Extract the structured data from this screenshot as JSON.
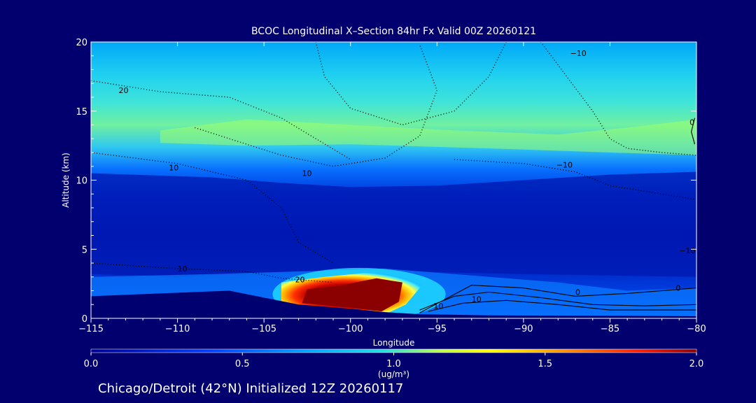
{
  "chart_data": {
    "type": "heatmap",
    "title": "BCOC Longitudinal X–Section 84hr  Fx Valid 00Z 20260121",
    "xlabel": "Longitude",
    "ylabel": "Altitude (km)",
    "xlim": [
      -115,
      -80
    ],
    "ylim": [
      0,
      20
    ],
    "x_ticks": [
      -115,
      -110,
      -105,
      -100,
      -95,
      -90,
      -85,
      -80
    ],
    "x_tick_labels": [
      "−115",
      "−110",
      "−105",
      "−100",
      "−95",
      "−90",
      "−85",
      "−80"
    ],
    "y_ticks": [
      0,
      5,
      10,
      15,
      20
    ],
    "y_tick_labels": [
      "0",
      "5",
      "10",
      "15",
      "20"
    ],
    "colorbar": {
      "min": 0.0,
      "max": 2.0,
      "ticks": [
        0.0,
        0.5,
        1.0,
        1.5,
        2.0
      ],
      "tick_labels": [
        "0.0",
        "0.5",
        "1.0",
        "1.5",
        "2.0"
      ],
      "unit_label": "(ug/m³)",
      "colors": [
        "#000090",
        "#0010d0",
        "#0050ff",
        "#00a0ff",
        "#20d8f0",
        "#a0ff60",
        "#ffff00",
        "#ffa000",
        "#ff3000",
        "#c00000",
        "#8b0000"
      ]
    },
    "bands": [
      {
        "name": "",
        "alt_range": [
          0,
          3
        ],
        "value": 0.15
      },
      {
        "name": "",
        "alt_range": [
          3,
          9
        ],
        "value": 0.2
      },
      {
        "name": "",
        "alt_range": [
          9,
          11
        ],
        "value": 0.35
      },
      {
        "name": "",
        "alt_range": [
          11,
          15
        ],
        "value": 0.75
      },
      {
        "name": "",
        "alt_range": [
          15,
          20
        ],
        "value": 0.6
      }
    ],
    "plume": {
      "lon_range": [
        -103,
        -96
      ],
      "alt_range": [
        0.5,
        3
      ],
      "peak_value": 2.0
    },
    "contour_labels": [
      "20",
      "10",
      "10",
      "−10",
      "10",
      "20",
      "−10",
      "10",
      "0",
      "−10",
      "0",
      "0",
      "10"
    ]
  },
  "footer": {
    "text": "Chicago/Detroit (42°N) Initialized 12Z 20260117"
  }
}
